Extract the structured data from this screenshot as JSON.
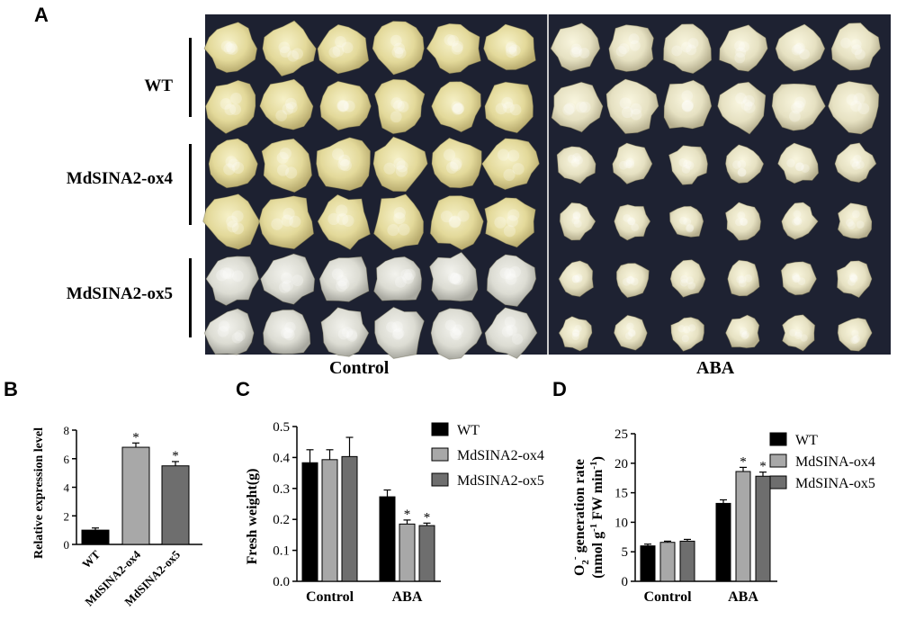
{
  "panel_a": {
    "letter": "A",
    "rows": [
      "WT",
      "MdSINA2-ox4",
      "MdSINA2-ox5"
    ],
    "conditions": [
      "Control",
      "ABA"
    ]
  },
  "chart_data": [
    {
      "panel": "B",
      "type": "bar",
      "ylabel": "Relative expression level",
      "xlabel": "",
      "categories": [
        "WT",
        "MdSINA2-ox4",
        "MdSINA2-ox5"
      ],
      "values": [
        1.0,
        6.8,
        5.5
      ],
      "errors": [
        0.15,
        0.3,
        0.3
      ],
      "significance": [
        "",
        "*",
        "*"
      ],
      "colors": [
        "#000000",
        "#a8a8a8",
        "#6e6e6e"
      ],
      "ylim": [
        0,
        8
      ],
      "yticks": [
        0,
        2,
        4,
        6,
        8
      ]
    },
    {
      "panel": "C",
      "type": "bar",
      "ylabel": "Fresh weight(g)",
      "xlabel": "",
      "categories": [
        "Control",
        "ABA"
      ],
      "series": [
        {
          "name": "WT",
          "color": "#000000",
          "values": [
            0.383,
            0.273
          ],
          "errors": [
            0.042,
            0.022
          ],
          "significance": [
            "",
            ""
          ]
        },
        {
          "name": "MdSINA2-ox4",
          "color": "#a8a8a8",
          "values": [
            0.393,
            0.185
          ],
          "errors": [
            0.032,
            0.013
          ],
          "significance": [
            "",
            "*"
          ]
        },
        {
          "name": "MdSINA2-ox5",
          "color": "#6e6e6e",
          "values": [
            0.403,
            0.18
          ],
          "errors": [
            0.062,
            0.008
          ],
          "significance": [
            "",
            "*"
          ]
        }
      ],
      "ylim": [
        0,
        0.5
      ],
      "yticks": [
        "0.0",
        "0.1",
        "0.2",
        "0.3",
        "0.4",
        "0.5"
      ],
      "legend": "right"
    },
    {
      "panel": "D",
      "type": "bar",
      "ylabel_line1": "O2- generation rate",
      "ylabel_line2": "(nmol g-1 FW min-1)",
      "xlabel": "",
      "categories": [
        "Control",
        "ABA"
      ],
      "series": [
        {
          "name": "WT",
          "color": "#000000",
          "values": [
            6.0,
            13.2
          ],
          "errors": [
            0.3,
            0.6
          ],
          "significance": [
            "",
            ""
          ]
        },
        {
          "name": "MdSINA-ox4",
          "color": "#a8a8a8",
          "values": [
            6.6,
            18.6
          ],
          "errors": [
            0.2,
            0.7
          ],
          "significance": [
            "",
            "*"
          ]
        },
        {
          "name": "MdSINA-ox5",
          "color": "#6e6e6e",
          "values": [
            6.8,
            17.8
          ],
          "errors": [
            0.3,
            0.7
          ],
          "significance": [
            "",
            "*"
          ]
        }
      ],
      "ylim": [
        0,
        25
      ],
      "yticks": [
        0,
        5,
        10,
        15,
        20,
        25
      ],
      "legend": "right"
    }
  ]
}
